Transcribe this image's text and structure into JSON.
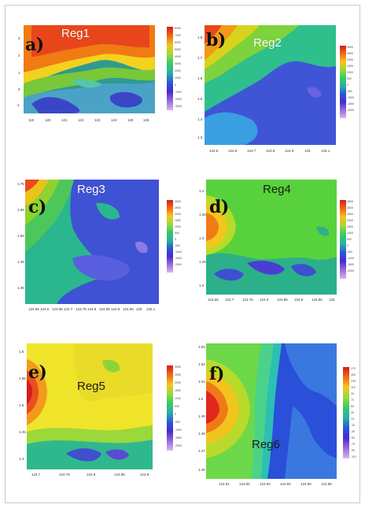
{
  "panels": [
    {
      "letter": "a)",
      "region": "Reg1",
      "y_ticks": [
        "3",
        "2",
        "1",
        "0",
        "-1"
      ],
      "x_ticks": [
        "119",
        "120",
        "121",
        "122",
        "123",
        "124",
        "125",
        "126"
      ],
      "colorbar": [
        "8000",
        "7000",
        "6000",
        "5000",
        "4000",
        "3000",
        "2000",
        "1000",
        "0",
        "-1000",
        "-2000",
        "-3000"
      ]
    },
    {
      "letter": "b)",
      "region": "Reg2",
      "y_ticks": [
        "1.8",
        "1.7",
        "1.6",
        "1.5",
        "1.4",
        "1.3"
      ],
      "x_ticks": [
        "124.5",
        "124.6",
        "124.7",
        "124.8",
        "124.9",
        "125",
        "125.1"
      ],
      "colorbar": [
        "3000",
        "2500",
        "2000",
        "1500",
        "1000",
        "500",
        "0",
        "-500",
        "-1000",
        "-1500",
        "-2000"
      ]
    },
    {
      "letter": "c)",
      "region": "Reg3",
      "y_ticks": [
        "1.75",
        "1.65",
        "1.55",
        "1.45",
        "1.35"
      ],
      "x_ticks": [
        "124.55",
        "124.6",
        "124.65",
        "124.7",
        "124.75",
        "124.8",
        "124.85",
        "124.9",
        "124.95",
        "125",
        "125.1"
      ],
      "colorbar": [
        "3000",
        "2500",
        "2000",
        "1500",
        "1000",
        "500",
        "0",
        "-500",
        "-1000",
        "-1500",
        "-2000"
      ]
    },
    {
      "letter": "d)",
      "region": "Reg4",
      "y_ticks": [
        "1.4",
        "1.35",
        "1.3",
        "1.25",
        "1.2"
      ],
      "x_ticks": [
        "124.65",
        "124.7",
        "124.75",
        "124.8",
        "124.85",
        "124.9",
        "124.95",
        "125"
      ],
      "colorbar": [
        "3500",
        "3000",
        "2500",
        "2000",
        "1500",
        "1000",
        "500",
        "0",
        "-500",
        "-1000",
        "-1500",
        "-2000"
      ]
    },
    {
      "letter": "e)",
      "region": "Reg5",
      "y_ticks": [
        "1.6",
        "1.55",
        "1.5",
        "1.45",
        "1.4"
      ],
      "x_ticks": [
        "124.7",
        "124.75",
        "124.8",
        "124.85",
        "124.9"
      ],
      "colorbar": [
        "3000",
        "2500",
        "2000",
        "1500",
        "1000",
        "500",
        "0",
        "-500",
        "-1000",
        "-1500",
        "-2000"
      ]
    },
    {
      "letter": "f)",
      "region": "Reg6",
      "y_ticks": [
        "1.53",
        "1.52",
        "1.51",
        "1.5",
        "1.49",
        "1.48",
        "1.47",
        "1.46"
      ],
      "x_ticks": [
        "124.81",
        "124.82",
        "124.83",
        "124.84",
        "124.85",
        "124.86"
      ],
      "colorbar": [
        "170",
        "150",
        "130",
        "110",
        "90",
        "70",
        "50",
        "30",
        "10",
        "-10",
        "-30",
        "-50",
        "-70",
        "-90",
        "-110"
      ]
    }
  ]
}
